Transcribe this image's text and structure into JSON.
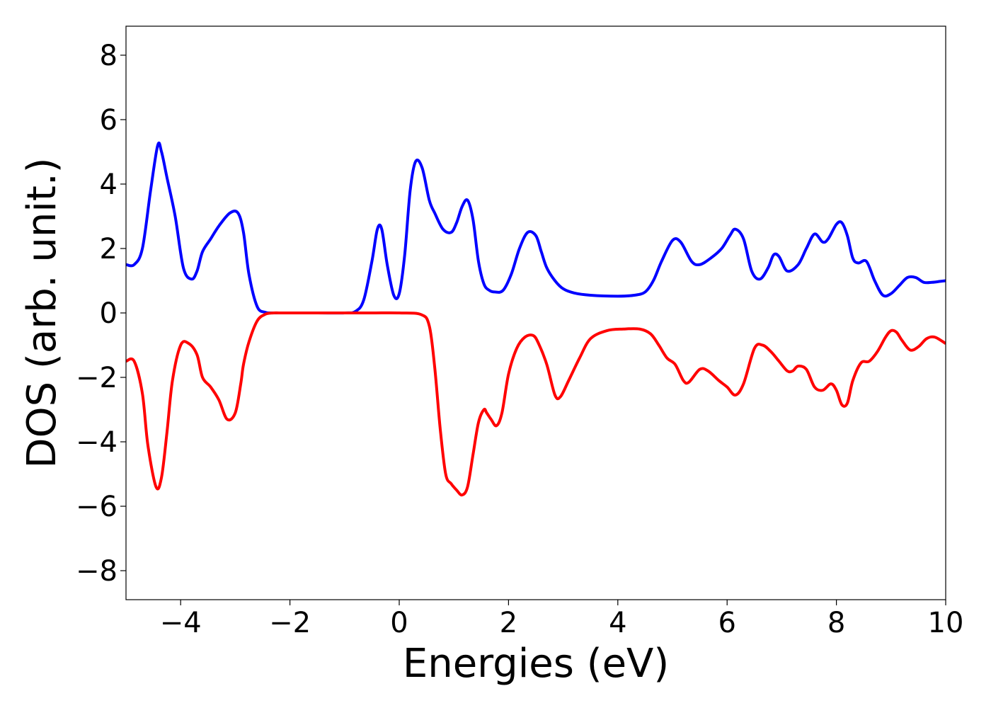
{
  "chart_data": {
    "type": "line",
    "title": "",
    "xlabel": "Energies (eV)",
    "ylabel": "DOS (arb. unit.)",
    "xlim": [
      -5,
      10
    ],
    "ylim": [
      -8.9,
      8.9
    ],
    "xticks": [
      -4,
      -2,
      0,
      2,
      4,
      6,
      8,
      10
    ],
    "xtick_labels": [
      "−4",
      "−2",
      "0",
      "2",
      "4",
      "6",
      "8",
      "10"
    ],
    "yticks": [
      8,
      6,
      4,
      2,
      0,
      -2,
      -4,
      -6,
      -8
    ],
    "ytick_labels": [
      "8",
      "6",
      "4",
      "2",
      "0",
      "−2",
      "−4",
      "−6",
      "−8"
    ],
    "grid": false,
    "series": [
      {
        "color": "#0000ff",
        "x": [
          -5.0,
          -4.85,
          -4.7,
          -4.55,
          -4.42,
          -4.35,
          -4.25,
          -4.1,
          -3.95,
          -3.8,
          -3.7,
          -3.6,
          -3.45,
          -3.3,
          -3.1,
          -2.95,
          -2.85,
          -2.75,
          -2.6,
          -2.45,
          -2.3,
          -2.1,
          -1.5,
          -1.0,
          -0.8,
          -0.65,
          -0.5,
          -0.4,
          -0.32,
          -0.22,
          -0.1,
          0.0,
          0.1,
          0.2,
          0.3,
          0.42,
          0.55,
          0.65,
          0.8,
          0.95,
          1.05,
          1.15,
          1.25,
          1.35,
          1.45,
          1.55,
          1.65,
          1.75,
          1.9,
          2.05,
          2.2,
          2.35,
          2.5,
          2.6,
          2.7,
          2.85,
          3.0,
          3.2,
          3.5,
          4.0,
          4.3,
          4.5,
          4.65,
          4.8,
          5.0,
          5.15,
          5.35,
          5.5,
          5.7,
          5.9,
          6.05,
          6.15,
          6.3,
          6.45,
          6.6,
          6.75,
          6.85,
          6.95,
          7.1,
          7.3,
          7.45,
          7.6,
          7.75,
          7.85,
          8.0,
          8.1,
          8.2,
          8.3,
          8.4,
          8.55,
          8.7,
          8.85,
          9.0,
          9.15,
          9.3,
          9.45,
          9.6,
          9.75,
          9.9,
          10.0
        ],
        "y": [
          1.5,
          1.5,
          2.0,
          3.8,
          5.2,
          5.0,
          4.2,
          3.0,
          1.4,
          1.05,
          1.3,
          1.9,
          2.3,
          2.7,
          3.1,
          3.1,
          2.5,
          1.2,
          0.2,
          0.02,
          0.0,
          0.0,
          0.0,
          0.0,
          0.05,
          0.4,
          1.6,
          2.6,
          2.6,
          1.5,
          0.55,
          0.6,
          1.8,
          3.8,
          4.7,
          4.5,
          3.5,
          3.1,
          2.6,
          2.5,
          2.8,
          3.3,
          3.5,
          2.9,
          1.6,
          0.9,
          0.7,
          0.65,
          0.7,
          1.2,
          2.0,
          2.5,
          2.4,
          1.9,
          1.4,
          1.0,
          0.75,
          0.62,
          0.55,
          0.52,
          0.55,
          0.65,
          1.0,
          1.6,
          2.25,
          2.2,
          1.6,
          1.5,
          1.7,
          2.0,
          2.4,
          2.6,
          2.3,
          1.3,
          1.05,
          1.4,
          1.8,
          1.75,
          1.3,
          1.5,
          2.0,
          2.45,
          2.2,
          2.3,
          2.75,
          2.8,
          2.4,
          1.7,
          1.55,
          1.6,
          1.0,
          0.55,
          0.6,
          0.85,
          1.1,
          1.1,
          0.95,
          0.95,
          0.98,
          1.0
        ]
      },
      {
        "color": "#ff0000",
        "x": [
          -5.0,
          -4.85,
          -4.7,
          -4.6,
          -4.45,
          -4.35,
          -4.25,
          -4.15,
          -4.0,
          -3.85,
          -3.7,
          -3.6,
          -3.45,
          -3.3,
          -3.15,
          -3.0,
          -2.9,
          -2.85,
          -2.75,
          -2.6,
          -2.45,
          -2.3,
          -2.2,
          -2.0,
          -1.5,
          -1.0,
          -0.5,
          0.0,
          0.4,
          0.55,
          0.65,
          0.75,
          0.85,
          0.95,
          1.05,
          1.15,
          1.25,
          1.35,
          1.45,
          1.55,
          1.6,
          1.68,
          1.78,
          1.88,
          2.0,
          2.15,
          2.3,
          2.45,
          2.55,
          2.7,
          2.85,
          2.95,
          3.1,
          3.3,
          3.5,
          3.8,
          4.1,
          4.4,
          4.6,
          4.75,
          4.9,
          5.05,
          5.2,
          5.3,
          5.5,
          5.65,
          5.85,
          6.0,
          6.15,
          6.3,
          6.5,
          6.65,
          6.8,
          6.95,
          7.1,
          7.2,
          7.3,
          7.45,
          7.6,
          7.75,
          7.9,
          8.0,
          8.1,
          8.2,
          8.3,
          8.45,
          8.6,
          8.75,
          8.9,
          9.0,
          9.1,
          9.2,
          9.35,
          9.5,
          9.65,
          9.8,
          10.0
        ],
        "y": [
          -1.5,
          -1.5,
          -2.5,
          -4.1,
          -5.4,
          -5.1,
          -3.7,
          -2.1,
          -1.0,
          -0.95,
          -1.3,
          -2.0,
          -2.3,
          -2.7,
          -3.3,
          -3.1,
          -2.2,
          -1.6,
          -0.9,
          -0.25,
          -0.04,
          0.0,
          0.0,
          0.0,
          0.0,
          0.0,
          0.0,
          0.0,
          -0.05,
          -0.4,
          -1.7,
          -3.6,
          -5.0,
          -5.3,
          -5.5,
          -5.65,
          -5.4,
          -4.4,
          -3.4,
          -3.0,
          -3.1,
          -3.3,
          -3.5,
          -3.1,
          -1.9,
          -1.1,
          -0.75,
          -0.7,
          -0.95,
          -1.6,
          -2.55,
          -2.6,
          -2.1,
          -1.4,
          -0.8,
          -0.55,
          -0.5,
          -0.5,
          -0.65,
          -1.0,
          -1.4,
          -1.6,
          -2.1,
          -2.15,
          -1.75,
          -1.8,
          -2.1,
          -2.3,
          -2.55,
          -2.2,
          -1.1,
          -1.0,
          -1.2,
          -1.5,
          -1.8,
          -1.8,
          -1.65,
          -1.75,
          -2.3,
          -2.4,
          -2.2,
          -2.4,
          -2.85,
          -2.8,
          -2.1,
          -1.55,
          -1.5,
          -1.2,
          -0.75,
          -0.55,
          -0.6,
          -0.85,
          -1.15,
          -1.05,
          -0.8,
          -0.75,
          -0.95
        ]
      }
    ]
  }
}
